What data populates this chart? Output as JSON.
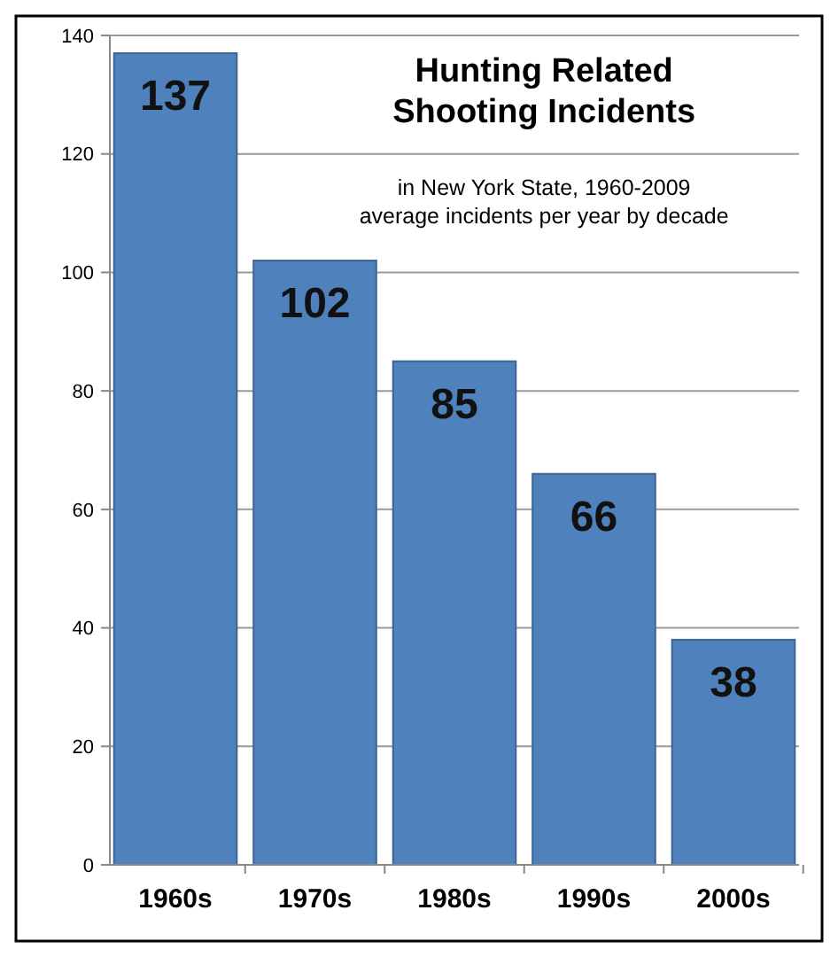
{
  "chart_data": {
    "type": "bar",
    "title": "Hunting Related\nShooting Incidents",
    "subtitle": "in New York State, 1960-2009\naverage incidents per year by decade",
    "categories": [
      "1960s",
      "1970s",
      "1980s",
      "1990s",
      "2000s"
    ],
    "values": [
      137,
      102,
      85,
      66,
      38
    ],
    "color": "#4f81bd",
    "ylim": [
      0,
      140
    ],
    "yticks": [
      0,
      20,
      40,
      60,
      80,
      100,
      120,
      140
    ],
    "grid": "y",
    "data_labels": true
  }
}
